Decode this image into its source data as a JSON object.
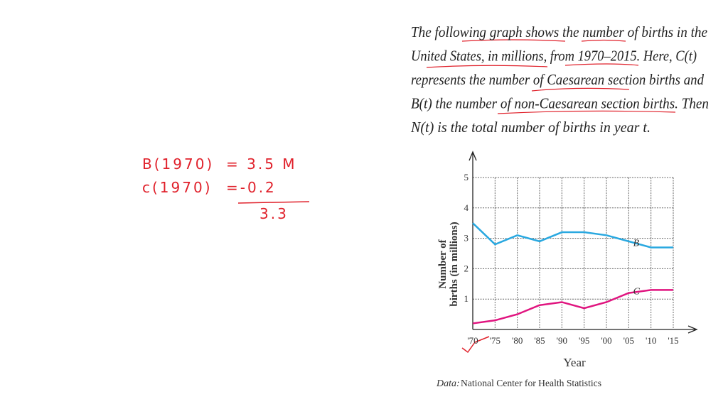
{
  "problem": {
    "lines": [
      "The following graph shows the number of births in the",
      "United States, in millions, from 1970–2015. Here, C(t)",
      "represents the number of Caesarean section births and",
      "B(t) the number of non-Caesarean section births. Then",
      "N(t) is the total number of births in year t."
    ]
  },
  "notes": {
    "rows": [
      [
        "B(1970)",
        "= 3.5 M"
      ],
      [
        "c(1970)",
        "=-0.2"
      ]
    ],
    "result": "3.3"
  },
  "chart_data": {
    "type": "line",
    "ylabel": [
      "Number of",
      "births (in millions)"
    ],
    "xlabel": "Year",
    "source_label": "Data:",
    "source_text": "National Center for Health Statistics",
    "x": [
      1970,
      1975,
      1980,
      1985,
      1990,
      1995,
      2000,
      2005,
      2010,
      2015
    ],
    "series": [
      {
        "name": "B",
        "color": "#29a8e0",
        "values": [
          3.5,
          2.8,
          3.1,
          2.9,
          3.2,
          3.2,
          3.1,
          2.9,
          2.7,
          2.7
        ]
      },
      {
        "name": "C",
        "color": "#e0147f",
        "values": [
          0.2,
          0.3,
          0.5,
          0.8,
          0.9,
          0.7,
          0.9,
          1.2,
          1.3,
          1.3
        ]
      }
    ],
    "xlim": [
      1970,
      2015
    ],
    "xticks": [
      {
        "value": 1970,
        "label": "'70"
      },
      {
        "value": 1975,
        "label": "'75"
      },
      {
        "value": 1980,
        "label": "'80"
      },
      {
        "value": 1985,
        "label": "'85"
      },
      {
        "value": 1990,
        "label": "'90"
      },
      {
        "value": 1995,
        "label": "'95"
      },
      {
        "value": 2000,
        "label": "'00"
      },
      {
        "value": 2005,
        "label": "'05"
      },
      {
        "value": 2010,
        "label": "'10"
      },
      {
        "value": 2015,
        "label": "'15"
      }
    ],
    "ylim": [
      0,
      5
    ],
    "yticks": [
      1,
      2,
      3,
      4,
      5
    ],
    "grid": true
  }
}
